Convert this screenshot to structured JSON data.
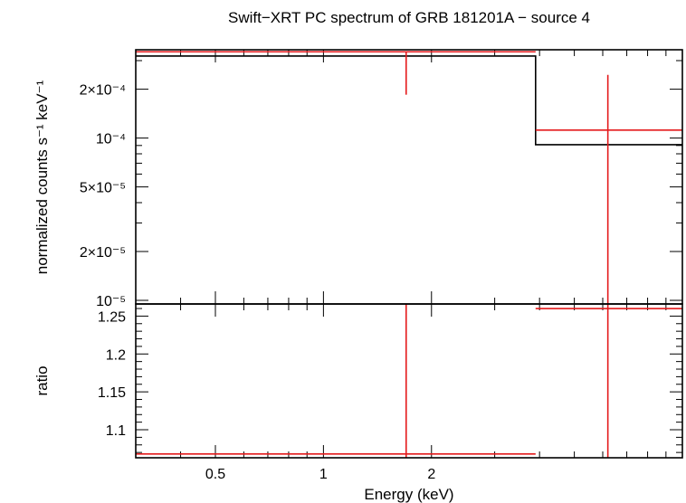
{
  "chart_data": [
    {
      "type": "line",
      "panel": "spectrum",
      "title": "Swift−XRT PC spectrum of GRB 181201A − source 4",
      "ylabel": "normalized counts s⁻¹ keV⁻¹",
      "yscale": "log",
      "ylim": [
        9.5e-06,
        0.00035
      ],
      "xscale": "log",
      "xlim": [
        0.3,
        10
      ],
      "y_ticks": [
        {
          "value": 1e-05,
          "label": "10⁻⁵"
        },
        {
          "value": 2e-05,
          "label": "2×10⁻⁵"
        },
        {
          "value": 5e-05,
          "label": "5×10⁻⁵"
        },
        {
          "value": 0.0001,
          "label": "10⁻⁴"
        },
        {
          "value": 0.0002,
          "label": "2×10⁻⁴"
        }
      ],
      "series": [
        {
          "kind": "data",
          "color": "#e41a1c",
          "points": [
            {
              "x_lo": 0.3,
              "x_hi": 3.9,
              "x_center": 1.7,
              "y": 0.00034,
              "y_lo": 0.000185,
              "y_hi": 0.00034
            },
            {
              "x_lo": 3.9,
              "x_hi": 10,
              "x_center": 6.2,
              "y": 0.000112,
              "y_lo": 9.5e-06,
              "y_hi": 0.000245
            }
          ]
        },
        {
          "kind": "model",
          "color": "#000000",
          "steps": [
            {
              "x_lo": 0.3,
              "x_hi": 3.9,
              "y": 0.00032
            },
            {
              "x_lo": 3.9,
              "x_hi": 10,
              "y": 9.1e-05
            }
          ]
        }
      ]
    },
    {
      "type": "line",
      "panel": "ratio",
      "xlabel": "Energy (keV)",
      "ylabel": "ratio",
      "yscale": "linear",
      "ylim": [
        1.063,
        1.266
      ],
      "xscale": "log",
      "xlim": [
        0.3,
        10
      ],
      "x_ticks": [
        {
          "value": 0.5,
          "label": "0.5"
        },
        {
          "value": 1,
          "label": "1"
        },
        {
          "value": 2,
          "label": "2"
        }
      ],
      "y_ticks": [
        {
          "value": 1.1,
          "label": "1.1"
        },
        {
          "value": 1.15,
          "label": "1.15"
        },
        {
          "value": 1.2,
          "label": "1.2"
        },
        {
          "value": 1.25,
          "label": "1.25"
        }
      ],
      "series": [
        {
          "kind": "data",
          "color": "#e41a1c",
          "points": [
            {
              "x_lo": 0.3,
              "x_hi": 3.9,
              "x_center": 1.7,
              "y": 1.068,
              "y_lo": 1.063,
              "y_hi": 1.266
            },
            {
              "x_lo": 3.9,
              "x_hi": 10,
              "x_center": 6.2,
              "y": 1.26,
              "y_lo": 1.063,
              "y_hi": 1.266
            }
          ]
        }
      ]
    }
  ]
}
